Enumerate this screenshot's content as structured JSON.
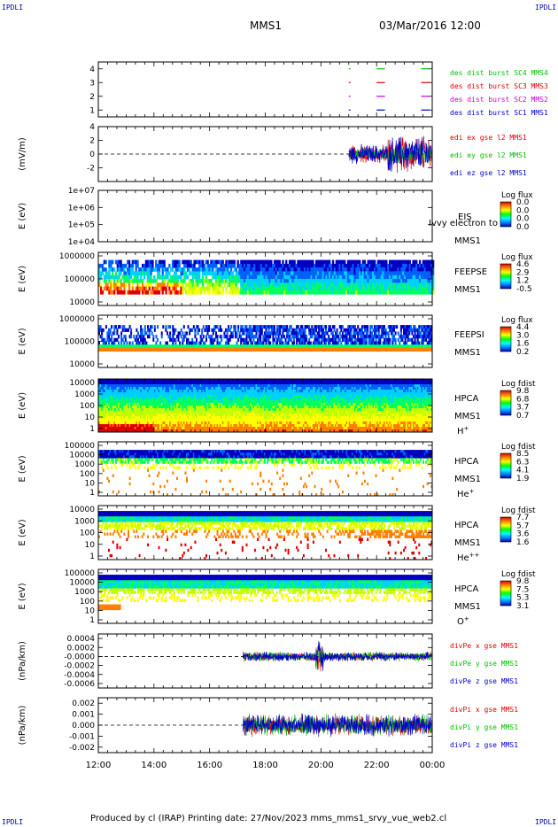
{
  "corners": {
    "tl": "IPDLI",
    "tr": "IPDLI",
    "bl": "IPDLI",
    "br": "IPDLI"
  },
  "header": {
    "spacecraft": "MMS1",
    "datetime": "03/Mar/2016 12:00"
  },
  "footer": {
    "text": "Produced by cl (IRAP)   Printing date: 27/Nov/2023   mms_mms1_srvy_vue_web2.cl"
  },
  "colors": {
    "red": "#e00000",
    "green": "#00c000",
    "blue": "#0000d0",
    "magenta": "#d000d0",
    "spectrogram": [
      "#0000c0",
      "#0060ff",
      "#00d0ff",
      "#00ff60",
      "#c0ff00",
      "#ffff00",
      "#ff8000",
      "#e00000"
    ]
  },
  "chart_data": [
    {
      "id": "burst",
      "type": "line",
      "ylabel": "",
      "ylim": [
        0.5,
        4.5
      ],
      "yticks": [
        "1",
        "2",
        "3",
        "4"
      ],
      "series": [
        {
          "name": "des dist burst SC1 MMS1",
          "color": "#0000d0",
          "y": 1
        },
        {
          "name": "des dist burst SC2 MMS2",
          "color": "#d000d0",
          "y": 2
        },
        {
          "name": "des dist burst SC3 MMS3",
          "color": "#e00000",
          "y": 3
        },
        {
          "name": "des dist burst SC4 MMS4",
          "color": "#00c000",
          "y": 4
        }
      ],
      "intervals_hours": [
        [
          21.0,
          21.05
        ],
        [
          22.0,
          22.3
        ],
        [
          23.6,
          23.9
        ]
      ]
    },
    {
      "id": "efield",
      "type": "line",
      "ylabel": "(mV/m)",
      "ylim": [
        -4,
        4
      ],
      "yticks": [
        "-2",
        "0",
        "2",
        "4"
      ],
      "series": [
        {
          "name": "edi ex gse l2 MMS1",
          "color": "#e00000"
        },
        {
          "name": "edi ey gse l2 MMS1",
          "color": "#00c000"
        },
        {
          "name": "edi ez gse l2 MMS1",
          "color": "#0000d0"
        }
      ],
      "active_from_hours": 21.0
    },
    {
      "id": "eis",
      "type": "heatmap",
      "ylabel": "E (eV)",
      "yticks": [
        "1e+04",
        "1e+05",
        "1e+06",
        "1e+07"
      ],
      "instrument": "EIS",
      "spacecraft": "MMS1",
      "note": "Ivvy electron to",
      "colorbar": {
        "title": "Log flux",
        "ticks": [
          "0.0",
          "0.0",
          "0.0",
          "0.0"
        ]
      },
      "empty": true
    },
    {
      "id": "feepse",
      "type": "heatmap",
      "ylabel": "E (eV)",
      "yticks": [
        "10000",
        "100000",
        "1000000"
      ],
      "instrument": "FEEPSE",
      "spacecraft": "MMS1",
      "colorbar": {
        "title": "Log flux",
        "ticks": [
          "4.6",
          "2.9",
          "1.2",
          "-0.5"
        ]
      }
    },
    {
      "id": "feepsi",
      "type": "heatmap",
      "ylabel": "E (eV)",
      "yticks": [
        "10000",
        "100000",
        "1000000"
      ],
      "instrument": "FEEPSI",
      "spacecraft": "MMS1",
      "colorbar": {
        "title": "Log flux",
        "ticks": [
          "4.4",
          "3.0",
          "1.6",
          "0.2"
        ]
      }
    },
    {
      "id": "hpca_h",
      "type": "heatmap",
      "ylabel": "E (eV)",
      "yticks": [
        "1",
        "10",
        "100",
        "1000",
        "10000"
      ],
      "instrument": "HPCA",
      "spacecraft": "MMS1",
      "species": "H",
      "charge": "+",
      "colorbar": {
        "title": "Log fdist",
        "ticks": [
          "9.8",
          "6.8",
          "3.7",
          "0.7"
        ]
      }
    },
    {
      "id": "hpca_he1",
      "type": "heatmap",
      "ylabel": "E (eV)",
      "yticks": [
        "1",
        "10",
        "100",
        "1000",
        "10000",
        "100000"
      ],
      "instrument": "HPCA",
      "spacecraft": "MMS1",
      "species": "He",
      "charge": "+",
      "colorbar": {
        "title": "Log fdist",
        "ticks": [
          "8.5",
          "6.3",
          "4.1",
          "1.9"
        ]
      }
    },
    {
      "id": "hpca_he2",
      "type": "heatmap",
      "ylabel": "E (eV)",
      "yticks": [
        "1",
        "10",
        "100",
        "1000",
        "10000"
      ],
      "instrument": "HPCA",
      "spacecraft": "MMS1",
      "species": "He",
      "charge": "++",
      "colorbar": {
        "title": "Log fdist",
        "ticks": [
          "7.7",
          "5.7",
          "3.6",
          "1.6"
        ]
      }
    },
    {
      "id": "hpca_o",
      "type": "heatmap",
      "ylabel": "E (eV)",
      "yticks": [
        "1",
        "10",
        "100",
        "1000",
        "10000",
        "100000"
      ],
      "instrument": "HPCA",
      "spacecraft": "MMS1",
      "species": "O",
      "charge": "+",
      "colorbar": {
        "title": "Log fdist",
        "ticks": [
          "9.8",
          "7.5",
          "5.3",
          "3.1"
        ]
      }
    },
    {
      "id": "divpe",
      "type": "line",
      "ylabel": "(nPa/km)",
      "ylim": [
        -0.0007,
        0.0005
      ],
      "yticks": [
        "-0.0006",
        "-0.0004",
        "-0.0002",
        "-0.0000",
        "0.0002",
        "0.0004"
      ],
      "series": [
        {
          "name": "divPe x gse MMS1",
          "color": "#e00000"
        },
        {
          "name": "divPe y gse MMS1",
          "color": "#00c000"
        },
        {
          "name": "divPe z gse MMS1",
          "color": "#0000d0"
        }
      ],
      "active_from_hours": 17.2
    },
    {
      "id": "divpi",
      "type": "line",
      "ylabel": "(nPa/km)",
      "ylim": [
        -0.0025,
        0.0025
      ],
      "yticks": [
        "-0.002",
        "-0.001",
        "0.000",
        "0.001",
        "0.002"
      ],
      "series": [
        {
          "name": "divPi x gse MMS1",
          "color": "#e00000"
        },
        {
          "name": "divPi y gse MMS1",
          "color": "#00c000"
        },
        {
          "name": "divPi z gse MMS1",
          "color": "#0000d0"
        }
      ],
      "active_from_hours": 17.2
    }
  ],
  "xaxis": {
    "range_hours": [
      12,
      24
    ],
    "ticks": [
      {
        "label": "12:00",
        "hours": 12
      },
      {
        "label": "14:00",
        "hours": 14
      },
      {
        "label": "16:00",
        "hours": 16
      },
      {
        "label": "18:00",
        "hours": 18
      },
      {
        "label": "20:00",
        "hours": 20
      },
      {
        "label": "22:00",
        "hours": 22
      },
      {
        "label": "00:00",
        "hours": 24
      }
    ]
  }
}
